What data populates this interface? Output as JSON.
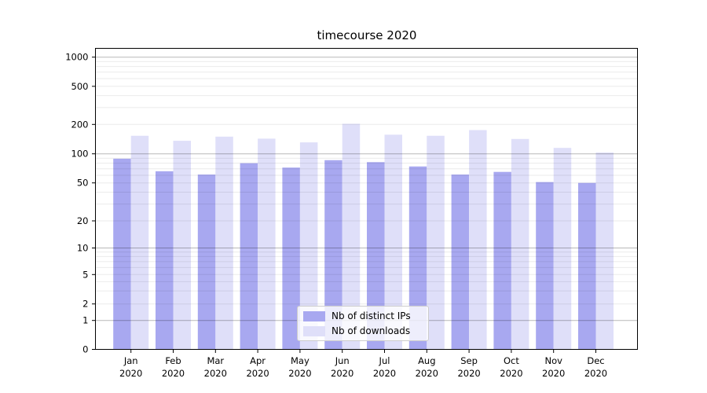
{
  "title": "timecourse 2020",
  "colors": {
    "ips_bar": "#a8a8f0",
    "downloads_bar": "#dfdff9",
    "major_gridline": "rgba(0,0,0,0.28)",
    "minor_gridline": "rgba(0,0,0,0.08)",
    "axis_spine": "#000000",
    "legend_border": "#cccccc"
  },
  "legend": {
    "items": [
      {
        "label": "Nb of distinct IPs",
        "series_key": "ips"
      },
      {
        "label": "Nb of downloads",
        "series_key": "downloads"
      }
    ]
  },
  "y_axis": {
    "tick_labels": [
      "0",
      "1",
      "2",
      "5",
      "10",
      "20",
      "50",
      "100",
      "200",
      "500",
      "1000"
    ],
    "tick_values": [
      0,
      1,
      2,
      5,
      10,
      20,
      50,
      100,
      200,
      500,
      1000
    ],
    "scale": "symlog"
  },
  "x_axis": {
    "year": "2020",
    "months": [
      "Jan",
      "Feb",
      "Mar",
      "Apr",
      "May",
      "Jun",
      "Jul",
      "Aug",
      "Sep",
      "Oct",
      "Nov",
      "Dec"
    ]
  },
  "chart_data": {
    "type": "bar",
    "title": "timecourse 2020",
    "categories": [
      "Jan 2020",
      "Feb 2020",
      "Mar 2020",
      "Apr 2020",
      "May 2020",
      "Jun 2020",
      "Jul 2020",
      "Aug 2020",
      "Sep 2020",
      "Oct 2020",
      "Nov 2020",
      "Dec 2020"
    ],
    "series": [
      {
        "name": "Nb of distinct IPs",
        "values": [
          89,
          66,
          61,
          80,
          72,
          86,
          82,
          74,
          61,
          65,
          51,
          50
        ]
      },
      {
        "name": "Nb of downloads",
        "values": [
          153,
          136,
          150,
          143,
          131,
          203,
          157,
          153,
          175,
          142,
          115,
          103
        ]
      }
    ],
    "xlabel": "",
    "ylabel": "",
    "ylim": [
      0,
      1200
    ],
    "y_scale": "symlog",
    "y_ticks": [
      0,
      1,
      2,
      5,
      10,
      20,
      50,
      100,
      200,
      500,
      1000
    ],
    "grid": "on",
    "legend_position": "lower center"
  }
}
